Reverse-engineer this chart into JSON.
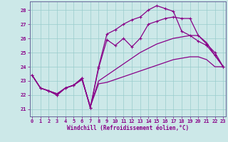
{
  "xlabel": "Windchill (Refroidissement éolien,°C)",
  "bg_color": "#cce8e8",
  "line_color": "#880088",
  "grid_color": "#99cccc",
  "ylim": [
    20.5,
    28.6
  ],
  "xlim": [
    -0.3,
    23.3
  ],
  "yticks": [
    21,
    22,
    23,
    24,
    25,
    26,
    27,
    28
  ],
  "xticks": [
    0,
    1,
    2,
    3,
    4,
    5,
    6,
    7,
    8,
    9,
    10,
    11,
    12,
    13,
    14,
    15,
    16,
    17,
    18,
    19,
    20,
    21,
    22,
    23
  ],
  "line1_x": [
    0,
    1,
    2,
    3,
    4,
    5,
    6,
    7,
    8,
    9,
    10,
    11,
    12,
    13,
    14,
    15,
    16,
    17,
    18,
    19,
    20,
    21,
    22,
    23
  ],
  "line1_y": [
    23.4,
    22.5,
    22.3,
    22.0,
    22.5,
    22.7,
    23.2,
    21.1,
    24.0,
    26.3,
    26.6,
    27.0,
    27.3,
    27.5,
    28.0,
    28.3,
    28.1,
    27.9,
    26.5,
    26.2,
    25.8,
    25.5,
    24.8,
    24.0
  ],
  "line2_x": [
    0,
    1,
    2,
    3,
    4,
    5,
    6,
    7,
    8,
    9,
    10,
    11,
    12,
    13,
    14,
    15,
    16,
    17,
    18,
    19,
    20,
    21,
    22,
    23
  ],
  "line2_y": [
    23.4,
    22.5,
    22.3,
    22.0,
    22.5,
    22.7,
    23.2,
    21.1,
    23.9,
    25.9,
    25.5,
    26.0,
    25.4,
    26.0,
    27.0,
    27.2,
    27.4,
    27.5,
    27.4,
    27.4,
    26.2,
    25.6,
    25.0,
    24.0
  ],
  "line3_x": [
    0,
    1,
    2,
    3,
    4,
    5,
    6,
    7,
    8,
    9,
    10,
    11,
    12,
    13,
    14,
    15,
    16,
    17,
    18,
    19,
    20,
    21,
    22,
    23
  ],
  "line3_y": [
    23.4,
    22.5,
    22.3,
    22.1,
    22.5,
    22.7,
    23.1,
    21.2,
    23.0,
    23.4,
    23.8,
    24.2,
    24.6,
    25.0,
    25.3,
    25.6,
    25.8,
    26.0,
    26.1,
    26.2,
    26.2,
    25.7,
    24.8,
    24.0
  ],
  "line4_x": [
    0,
    1,
    2,
    3,
    4,
    5,
    6,
    7,
    8,
    9,
    10,
    11,
    12,
    13,
    14,
    15,
    16,
    17,
    18,
    19,
    20,
    21,
    22,
    23
  ],
  "line4_y": [
    23.4,
    22.5,
    22.3,
    22.1,
    22.5,
    22.7,
    23.1,
    21.2,
    22.8,
    22.9,
    23.1,
    23.3,
    23.5,
    23.7,
    23.9,
    24.1,
    24.3,
    24.5,
    24.6,
    24.7,
    24.7,
    24.5,
    24.0,
    24.0
  ]
}
